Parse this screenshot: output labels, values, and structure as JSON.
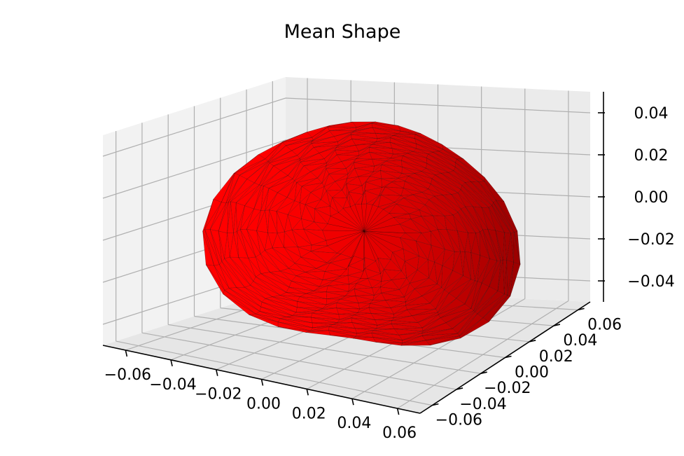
{
  "chart_data": {
    "type": "surface3d",
    "title": "Mean Shape",
    "x_ticks": [
      "−0.06",
      "−0.04",
      "−0.02",
      "0.00",
      "0.02",
      "0.04",
      "0.06"
    ],
    "y_ticks": [
      "−0.06",
      "−0.04",
      "−0.02",
      "0.00",
      "0.02",
      "0.04",
      "0.06"
    ],
    "z_ticks": [
      "−0.04",
      "−0.02",
      "0.00",
      "0.02",
      "0.04"
    ],
    "xlim": [
      -0.07,
      0.07
    ],
    "ylim": [
      -0.07,
      0.07
    ],
    "zlim": [
      -0.05,
      0.05
    ],
    "surface_color": "#ff0000",
    "grid": true
  }
}
